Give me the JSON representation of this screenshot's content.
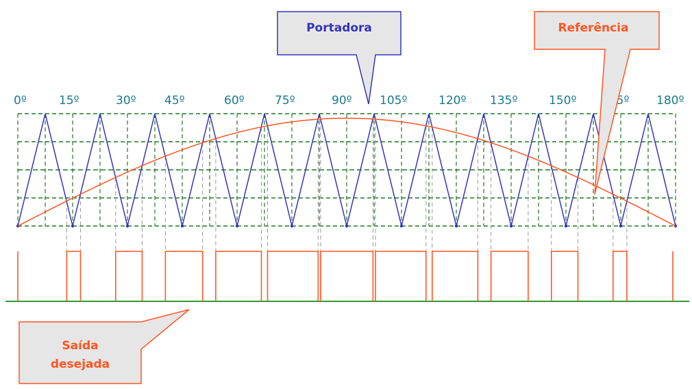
{
  "degree_labels": [
    "0º",
    "15º",
    "30º",
    "45º",
    "60º",
    "75º",
    "90º",
    "105º",
    "120º",
    "135º",
    "150º",
    "165º",
    "180º"
  ],
  "callouts": {
    "carrier": "Portadora",
    "reference": "Referência",
    "output_line1": "Saída",
    "output_line2": "desejada"
  },
  "waveforms": {
    "carrier_periods": 12,
    "reference_min": 0,
    "reference_max": 0.96,
    "carrier_min": 0,
    "carrier_max": 1
  },
  "colors": {
    "carrier": "#3333bb",
    "reference": "#ff5522",
    "grid": "#227722",
    "projection": "#999999",
    "callout_fill": "#e6e6e6",
    "baseline": "#339933"
  }
}
